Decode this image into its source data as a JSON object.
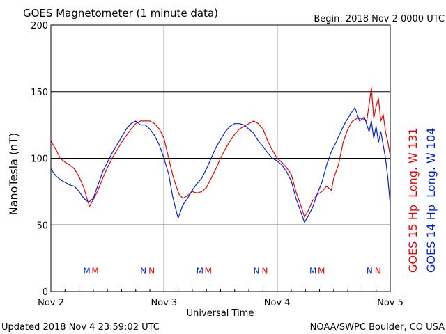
{
  "header": {
    "title": "GOES Magnetometer (1 minute data)",
    "begin": "Begin:  2018 Nov 2 0000 UTC"
  },
  "footer": {
    "updated": "Updated 2018 Nov  4 23:59:02 UTC",
    "credit": "NOAA/SWPC Boulder, CO USA"
  },
  "colors": {
    "goes15": "#ee0000",
    "goes14": "#0022dd",
    "grid": "#000000"
  },
  "chart_data": {
    "type": "line",
    "title": "GOES Magnetometer (1 minute data)",
    "xlabel": "Universal Time",
    "ylabel": "NanoTesla (nT)",
    "xlim": [
      0,
      72
    ],
    "x_unit": "hours since 2018 Nov 2 0000 UTC",
    "ylim": [
      0,
      200
    ],
    "yticks": [
      0,
      50,
      100,
      150,
      200
    ],
    "xticks": [
      {
        "x": 0,
        "label": "Nov 2"
      },
      {
        "x": 24,
        "label": "Nov 3"
      },
      {
        "x": 48,
        "label": "Nov 4"
      },
      {
        "x": 72,
        "label": "Nov 5"
      }
    ],
    "grid": true,
    "legend_position": "right, vertical",
    "series": [
      {
        "name": "GOES 15 Hp  Long. W 131",
        "color": "#ee0000",
        "points": [
          [
            0,
            113
          ],
          [
            1,
            107
          ],
          [
            2,
            100
          ],
          [
            3,
            97
          ],
          [
            4,
            95
          ],
          [
            5,
            92
          ],
          [
            6,
            86
          ],
          [
            7,
            78
          ],
          [
            7.8,
            68
          ],
          [
            8.2,
            64
          ],
          [
            9,
            69
          ],
          [
            10,
            76
          ],
          [
            11,
            85
          ],
          [
            12,
            93
          ],
          [
            13,
            100
          ],
          [
            14,
            106
          ],
          [
            15,
            112
          ],
          [
            16,
            117
          ],
          [
            17,
            122
          ],
          [
            18,
            126
          ],
          [
            19,
            128
          ],
          [
            20,
            128
          ],
          [
            21,
            128
          ],
          [
            22,
            126
          ],
          [
            23,
            122
          ],
          [
            24,
            115
          ],
          [
            25,
            100
          ],
          [
            25.8,
            88
          ],
          [
            26.5,
            80
          ],
          [
            27.2,
            73
          ],
          [
            28,
            70
          ],
          [
            29,
            72
          ],
          [
            30,
            75
          ],
          [
            31,
            74
          ],
          [
            32,
            75
          ],
          [
            33,
            78
          ],
          [
            34,
            85
          ],
          [
            35,
            92
          ],
          [
            36,
            100
          ],
          [
            37,
            107
          ],
          [
            38,
            113
          ],
          [
            39,
            118
          ],
          [
            40,
            122
          ],
          [
            41,
            124
          ],
          [
            42,
            126
          ],
          [
            43,
            128
          ],
          [
            44,
            126
          ],
          [
            45,
            122
          ],
          [
            46,
            113
          ],
          [
            47,
            106
          ],
          [
            48,
            100
          ],
          [
            49,
            97
          ],
          [
            50,
            93
          ],
          [
            51,
            88
          ],
          [
            52,
            75
          ],
          [
            53,
            65
          ],
          [
            53.8,
            56
          ],
          [
            54.5,
            60
          ],
          [
            55.5,
            68
          ],
          [
            56.5,
            73
          ],
          [
            57.5,
            75
          ],
          [
            58.5,
            79
          ],
          [
            59.5,
            76
          ],
          [
            60,
            85
          ],
          [
            61,
            95
          ],
          [
            62,
            112
          ],
          [
            63,
            122
          ],
          [
            64,
            128
          ],
          [
            65,
            130
          ],
          [
            66,
            130
          ],
          [
            67,
            128
          ],
          [
            67.5,
            140
          ],
          [
            68,
            153
          ],
          [
            68.5,
            130
          ],
          [
            69,
            139
          ],
          [
            69.5,
            145
          ],
          [
            70,
            128
          ],
          [
            70.5,
            133
          ],
          [
            71,
            120
          ],
          [
            71.5,
            112
          ],
          [
            72,
            102
          ]
        ]
      },
      {
        "name": "GOES 14 Hp  Long. W 104",
        "color": "#0022dd",
        "points": [
          [
            0,
            92
          ],
          [
            1,
            87
          ],
          [
            2,
            84
          ],
          [
            3,
            82
          ],
          [
            4,
            80
          ],
          [
            5,
            79
          ],
          [
            6,
            75
          ],
          [
            7,
            70
          ],
          [
            8,
            67
          ],
          [
            9,
            70
          ],
          [
            10,
            80
          ],
          [
            11,
            90
          ],
          [
            12,
            97
          ],
          [
            13,
            104
          ],
          [
            14,
            110
          ],
          [
            15,
            116
          ],
          [
            16,
            122
          ],
          [
            17,
            126
          ],
          [
            18,
            128
          ],
          [
            19,
            125
          ],
          [
            20,
            125
          ],
          [
            21,
            122
          ],
          [
            22,
            117
          ],
          [
            23,
            110
          ],
          [
            24,
            100
          ],
          [
            25,
            88
          ],
          [
            25.8,
            72
          ],
          [
            26.5,
            62
          ],
          [
            27,
            55
          ],
          [
            27.5,
            60
          ],
          [
            28,
            65
          ],
          [
            29,
            70
          ],
          [
            30,
            76
          ],
          [
            31,
            81
          ],
          [
            32,
            85
          ],
          [
            33,
            92
          ],
          [
            34,
            100
          ],
          [
            35,
            108
          ],
          [
            36,
            114
          ],
          [
            37,
            120
          ],
          [
            38,
            124
          ],
          [
            39,
            126
          ],
          [
            40,
            126
          ],
          [
            41,
            125
          ],
          [
            42,
            122
          ],
          [
            43,
            119
          ],
          [
            44,
            113
          ],
          [
            45,
            109
          ],
          [
            46,
            104
          ],
          [
            47,
            100
          ],
          [
            48,
            98
          ],
          [
            49,
            95
          ],
          [
            50,
            90
          ],
          [
            51,
            83
          ],
          [
            52,
            70
          ],
          [
            53,
            60
          ],
          [
            53.8,
            52
          ],
          [
            54.5,
            56
          ],
          [
            55.5,
            63
          ],
          [
            56.5,
            73
          ],
          [
            57.5,
            82
          ],
          [
            58.5,
            95
          ],
          [
            59.5,
            105
          ],
          [
            60.5,
            112
          ],
          [
            61.5,
            120
          ],
          [
            62.5,
            127
          ],
          [
            63.5,
            133
          ],
          [
            64.5,
            138
          ],
          [
            65.5,
            128
          ],
          [
            66.5,
            131
          ],
          [
            67.5,
            120
          ],
          [
            68,
            128
          ],
          [
            68.5,
            115
          ],
          [
            69,
            124
          ],
          [
            69.5,
            112
          ],
          [
            70,
            120
          ],
          [
            70.5,
            110
          ],
          [
            71,
            100
          ],
          [
            71.5,
            85
          ],
          [
            72,
            65
          ]
        ]
      }
    ],
    "markers": [
      {
        "x": 8.5,
        "labels": [
          {
            "text": "M",
            "series": "GOES 14 Hp  Long. W 104"
          },
          {
            "text": "M",
            "series": "GOES 15 Hp  Long. W 131"
          }
        ]
      },
      {
        "x": 20.5,
        "labels": [
          {
            "text": "N",
            "series": "GOES 14 Hp  Long. W 104"
          },
          {
            "text": "N",
            "series": "GOES 15 Hp  Long. W 131"
          }
        ]
      },
      {
        "x": 32.5,
        "labels": [
          {
            "text": "M",
            "series": "GOES 14 Hp  Long. W 104"
          },
          {
            "text": "M",
            "series": "GOES 15 Hp  Long. W 131"
          }
        ]
      },
      {
        "x": 44.5,
        "labels": [
          {
            "text": "N",
            "series": "GOES 14 Hp  Long. W 104"
          },
          {
            "text": "N",
            "series": "GOES 15 Hp  Long. W 131"
          }
        ]
      },
      {
        "x": 56.5,
        "labels": [
          {
            "text": "M",
            "series": "GOES 14 Hp  Long. W 104"
          },
          {
            "text": "M",
            "series": "GOES 15 Hp  Long. W 131"
          }
        ]
      },
      {
        "x": 68.5,
        "labels": [
          {
            "text": "N",
            "series": "GOES 14 Hp  Long. W 104"
          },
          {
            "text": "N",
            "series": "GOES 15 Hp  Long. W 131"
          }
        ]
      }
    ],
    "marker_y": 16
  }
}
